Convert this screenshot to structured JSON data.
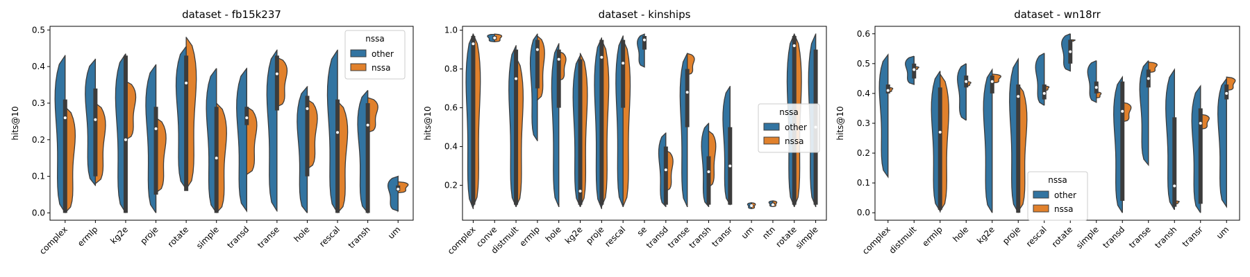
{
  "colors": {
    "other": "#3274a1",
    "nssa": "#e1812c",
    "edge": "#3c3c3c",
    "box": "#3c3c3c"
  },
  "chart_data": [
    {
      "type": "violin",
      "title": "dataset - fb15k237",
      "xlabel": "",
      "ylabel": "hits@10",
      "ylim": [
        -0.02,
        0.51
      ],
      "yticks": [
        "0.0",
        "0.1",
        "0.2",
        "0.3",
        "0.4",
        "0.5"
      ],
      "legend": {
        "title": "nssa",
        "entries": [
          "other",
          "nssa"
        ],
        "position": "top-right"
      },
      "categories": [
        "complex",
        "ermlp",
        "kg2e",
        "proje",
        "rotate",
        "simple",
        "transd",
        "transe",
        "hole",
        "rescal",
        "transh",
        "um"
      ],
      "series": [
        {
          "name": "other",
          "min": [
            0.0,
            0.075,
            0.0,
            0.0,
            0.065,
            0.0,
            0.005,
            0.005,
            0.0,
            0.0,
            0.0,
            0.005
          ],
          "q1": [
            0.0,
            0.1,
            0.0,
            0.05,
            0.06,
            0.0,
            0.24,
            0.28,
            0.1,
            0.0,
            0.0,
            0.06
          ],
          "median": [
            0.26,
            0.255,
            0.2,
            0.23,
            0.355,
            0.15,
            0.26,
            0.38,
            0.285,
            0.22,
            0.24,
            0.065
          ],
          "q3": [
            0.31,
            0.34,
            0.43,
            0.29,
            0.43,
            0.29,
            0.29,
            0.43,
            0.32,
            0.31,
            0.3,
            0.075
          ],
          "max": [
            0.43,
            0.42,
            0.435,
            0.405,
            0.455,
            0.395,
            0.395,
            0.445,
            0.345,
            0.445,
            0.335,
            0.1
          ]
        },
        {
          "name": "nssa",
          "min": [
            0.0,
            0.08,
            0.2,
            0.055,
            0.065,
            0.0,
            0.105,
            0.29,
            0.12,
            0.0,
            0.22,
            0.055
          ],
          "max": [
            0.29,
            0.3,
            0.36,
            0.26,
            0.48,
            0.3,
            0.29,
            0.425,
            0.31,
            0.305,
            0.315,
            0.085
          ]
        }
      ]
    },
    {
      "type": "violin",
      "title": "dataset - kinships",
      "xlabel": "",
      "ylabel": "hits@10",
      "ylim": [
        0.02,
        1.02
      ],
      "yticks": [
        "0.2",
        "0.4",
        "0.6",
        "0.8",
        "1.0"
      ],
      "legend": {
        "title": "nssa",
        "entries": [
          "other",
          "nssa"
        ],
        "position": "center-right"
      },
      "categories": [
        "complex",
        "conve",
        "distmult",
        "ermlp",
        "hole",
        "kg2e",
        "proje",
        "rescal",
        "se",
        "transd",
        "transe",
        "transh",
        "transr",
        "um",
        "ntn",
        "rotate",
        "simple"
      ],
      "series": [
        {
          "name": "other",
          "min": [
            0.08,
            0.94,
            0.09,
            0.43,
            0.09,
            0.09,
            0.08,
            0.09,
            0.81,
            0.09,
            0.09,
            0.09,
            0.1,
            0.08,
            0.09,
            0.09,
            0.09
          ],
          "q1": [
            0.1,
            0.95,
            0.1,
            0.7,
            0.6,
            0.1,
            0.1,
            0.6,
            0.9,
            0.1,
            0.5,
            0.1,
            0.1,
            0.09,
            0.1,
            0.1,
            0.1
          ],
          "median": [
            0.93,
            0.96,
            0.75,
            0.9,
            0.85,
            0.17,
            0.86,
            0.83,
            0.95,
            0.28,
            0.68,
            0.27,
            0.3,
            0.095,
            0.1,
            0.92,
            0.5
          ],
          "q3": [
            0.97,
            0.97,
            0.9,
            0.95,
            0.9,
            0.85,
            0.95,
            0.95,
            0.97,
            0.4,
            0.8,
            0.35,
            0.5,
            0.1,
            0.11,
            0.97,
            0.9
          ],
          "max": [
            0.98,
            0.98,
            0.92,
            0.98,
            0.93,
            0.87,
            0.96,
            0.97,
            0.98,
            0.47,
            0.88,
            0.52,
            0.71,
            0.11,
            0.12,
            0.98,
            0.98
          ]
        },
        {
          "name": "nssa",
          "min": [
            0.09,
            0.94,
            0.09,
            0.64,
            0.74,
            0.09,
            0.09,
            0.09,
            null,
            0.17,
            0.77,
            0.19,
            null,
            0.08,
            0.09,
            0.09,
            null
          ],
          "max": [
            0.98,
            0.98,
            0.86,
            0.97,
            0.89,
            0.88,
            0.95,
            0.95,
            null,
            0.38,
            0.88,
            0.48,
            null,
            0.11,
            0.12,
            0.98,
            null
          ]
        }
      ]
    },
    {
      "type": "violin",
      "title": "dataset - wn18rr",
      "xlabel": "",
      "ylabel": "hits@10",
      "ylim": [
        -0.025,
        0.625
      ],
      "yticks": [
        "0.0",
        "0.1",
        "0.2",
        "0.3",
        "0.4",
        "0.5",
        "0.6"
      ],
      "legend": {
        "title": "nssa",
        "entries": [
          "other",
          "nssa"
        ],
        "position": "lower-center"
      },
      "categories": [
        "complex",
        "distmult",
        "ermlp",
        "hole",
        "kg2e",
        "proje",
        "rescal",
        "rotate",
        "simple",
        "transd",
        "transe",
        "transh",
        "transr",
        "um"
      ],
      "series": [
        {
          "name": "other",
          "min": [
            0.12,
            0.43,
            0.005,
            0.31,
            0.0,
            0.0,
            0.36,
            0.475,
            0.37,
            0.0,
            0.16,
            0.01,
            0.0,
            0.02
          ],
          "q1": [
            0.4,
            0.45,
            0.01,
            0.42,
            0.4,
            0.0,
            0.38,
            0.5,
            0.4,
            0.04,
            0.42,
            0.02,
            0.03,
            0.38
          ],
          "median": [
            0.41,
            0.48,
            0.27,
            0.44,
            0.44,
            0.39,
            0.4,
            0.54,
            0.42,
            0.34,
            0.45,
            0.09,
            0.3,
            0.4
          ],
          "q3": [
            0.43,
            0.5,
            0.42,
            0.46,
            0.46,
            0.43,
            0.43,
            0.58,
            0.44,
            0.44,
            0.48,
            0.32,
            0.35,
            0.43
          ],
          "max": [
            0.53,
            0.525,
            0.475,
            0.5,
            0.48,
            0.515,
            0.535,
            0.6,
            0.51,
            0.455,
            0.51,
            0.48,
            0.425,
            0.45
          ]
        },
        {
          "name": "nssa",
          "min": [
            0.405,
            0.48,
            0.005,
            0.425,
            0.435,
            0.005,
            0.41,
            0.575,
            0.385,
            0.305,
            0.47,
            0.03,
            0.28,
            0.41
          ],
          "max": [
            0.42,
            0.49,
            0.465,
            0.44,
            0.465,
            0.43,
            0.425,
            0.58,
            0.405,
            0.37,
            0.505,
            0.04,
            0.33,
            0.455
          ]
        }
      ]
    }
  ]
}
